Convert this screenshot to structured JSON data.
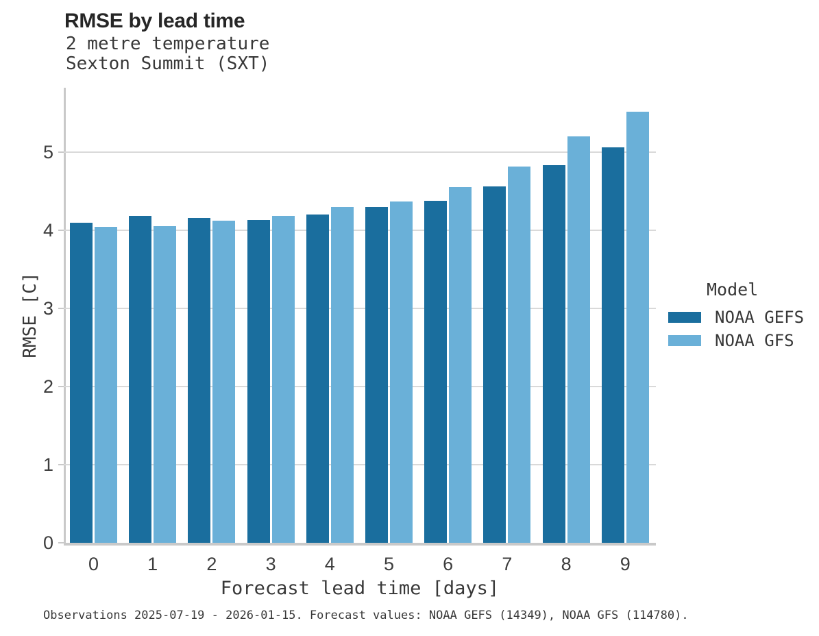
{
  "chart_data": {
    "type": "bar",
    "title": "RMSE by lead time",
    "subtitle": [
      "2 metre temperature",
      "Sexton Summit (SXT)"
    ],
    "categories": [
      "0",
      "1",
      "2",
      "3",
      "4",
      "5",
      "6",
      "7",
      "8",
      "9"
    ],
    "series": [
      {
        "name": "NOAA GEFS",
        "color": "#1a6e9e",
        "values": [
          4.1,
          4.18,
          4.16,
          4.13,
          4.2,
          4.3,
          4.38,
          4.56,
          4.83,
          5.06
        ]
      },
      {
        "name": "NOAA GFS",
        "color": "#6ab0d8",
        "values": [
          4.04,
          4.05,
          4.12,
          4.18,
          4.3,
          4.37,
          4.55,
          4.82,
          5.2,
          5.52
        ]
      }
    ],
    "xlabel": "Forecast lead time [days]",
    "ylabel": "RMSE [C]",
    "ylim": [
      0,
      5.83
    ],
    "yticks": [
      0,
      1,
      2,
      3,
      4,
      5
    ],
    "grid": true,
    "legend": {
      "title": "Model",
      "position": "right"
    }
  },
  "caption": "Observations 2025-07-19 - 2026-01-15. Forecast values: NOAA GEFS (14349), NOAA GFS (114780)."
}
